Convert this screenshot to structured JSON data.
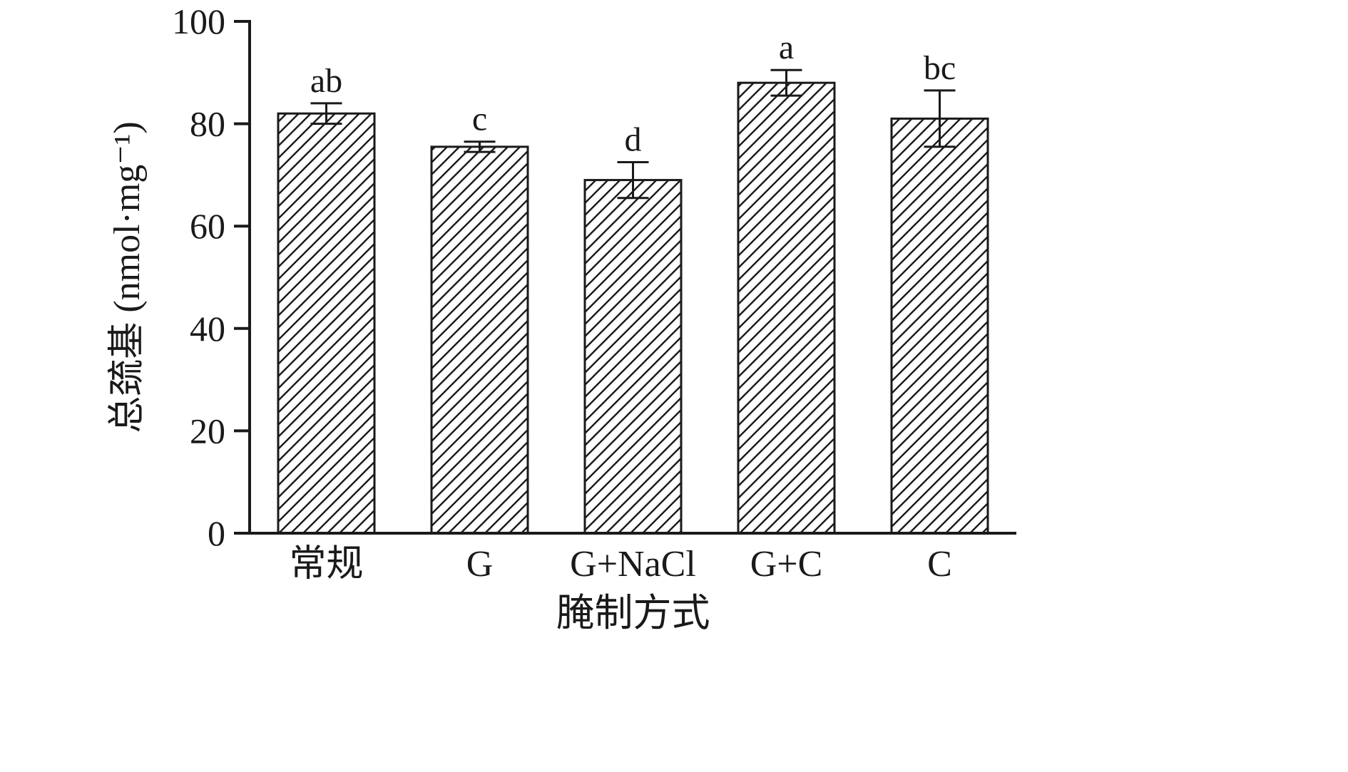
{
  "chart_data": {
    "type": "bar",
    "title": "",
    "xlabel": "腌制方式",
    "ylabel": "总巯基 (nmol·mg⁻¹)",
    "categories": [
      "常规",
      "G",
      "G+NaCl",
      "G+C",
      "C"
    ],
    "values": [
      82,
      75.5,
      69,
      88,
      81
    ],
    "errors": [
      2,
      1,
      3.5,
      2.5,
      5.5
    ],
    "sig_letters": [
      "ab",
      "c",
      "d",
      "a",
      "bc"
    ],
    "ylim": [
      0,
      100
    ],
    "yticks": [
      0,
      20,
      40,
      60,
      80,
      100
    ],
    "grid": false,
    "legend": "none",
    "bar_style": "diagonal-hatch",
    "colors": {
      "axis": "#1a1a1a",
      "bar_outline": "#1a1a1a",
      "hatch_line": "#1a1a1a",
      "background": "#ffffff"
    }
  }
}
